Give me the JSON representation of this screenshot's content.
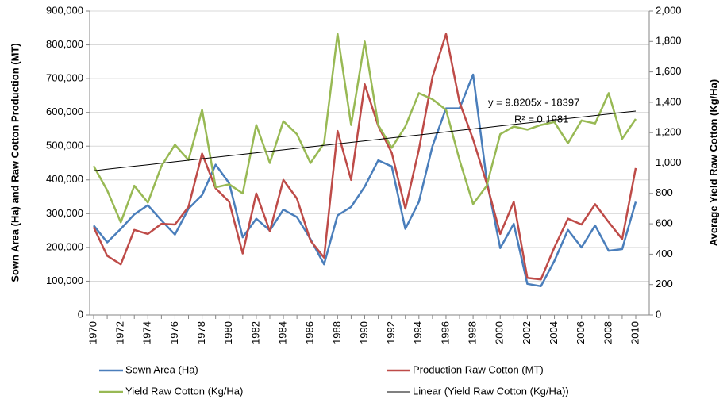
{
  "chart_data": {
    "type": "line",
    "y_label": "Sown Area (Ha) and Raw Cotton Production (MT)",
    "y2_label": "Average Yield Raw Cotton (Kg/Ha)",
    "annotations": [
      "y = 9.8205x - 18397",
      "R² = 0.1981"
    ],
    "categories": [
      "1970",
      null,
      "1972",
      null,
      "1974",
      null,
      "1976",
      null,
      "1978",
      null,
      "1980",
      null,
      "1982",
      null,
      "1984",
      null,
      "1986",
      null,
      "1988",
      null,
      "1990",
      null,
      "1992",
      null,
      "1994",
      null,
      "1996",
      null,
      "1998",
      null,
      "2000",
      null,
      "2002",
      null,
      "2004",
      null,
      "2006",
      null,
      "2008",
      null,
      "2010"
    ],
    "ylim": [
      0,
      900000
    ],
    "yticks": [
      0,
      {
        "value": 100000,
        "label": "100,000"
      },
      {
        "value": 200000,
        "label": "200,000"
      },
      {
        "value": 300000,
        "label": "300,000"
      },
      {
        "value": 400000,
        "label": "400,000"
      },
      {
        "value": 500000,
        "label": "500,000"
      },
      {
        "value": 600000,
        "label": "600,000"
      },
      {
        "value": 700000,
        "label": "700,000"
      },
      {
        "value": 800000,
        "label": "800,000"
      },
      {
        "value": 900000,
        "label": "900,000"
      }
    ],
    "y2lim": [
      0,
      2000
    ],
    "y2ticks": [
      0,
      200,
      400,
      600,
      800,
      {
        "value": 1000,
        "label": "1,000"
      },
      {
        "value": 1200,
        "label": "1,200"
      },
      {
        "value": 1400,
        "label": "1,400"
      },
      {
        "value": 1600,
        "label": "1,600"
      },
      {
        "value": 1800,
        "label": "1,800"
      },
      {
        "value": 2000,
        "label": "2,000"
      }
    ],
    "grid": true,
    "legend": "bottom",
    "series": [
      {
        "name": "Sown Area (Ha)",
        "color": "#4a7ebb",
        "values": [
          265000,
          215000,
          255000,
          298000,
          325000,
          280000,
          238000,
          315000,
          355000,
          445000,
          390000,
          230000,
          285000,
          250000,
          312000,
          290000,
          225000,
          150000,
          295000,
          320000,
          380000,
          458000,
          440000,
          255000,
          335000,
          500000,
          612000,
          612000,
          712000,
          400000,
          198000,
          270000,
          92000,
          85000,
          160000,
          252000,
          200000,
          265000,
          190000,
          195000,
          335000
        ]
      },
      {
        "name": "Production Raw Cotton (MT)",
        "color": "#be4b48",
        "values": [
          260000,
          175000,
          150000,
          252000,
          240000,
          270000,
          268000,
          320000,
          478000,
          375000,
          335000,
          182000,
          360000,
          248000,
          400000,
          345000,
          220000,
          170000,
          545000,
          400000,
          683000,
          560000,
          480000,
          315000,
          490000,
          705000,
          832000,
          630000,
          520000,
          390000,
          240000,
          335000,
          110000,
          105000,
          200000,
          285000,
          268000,
          328000,
          275000,
          225000,
          435000
        ]
      },
      {
        "name": "Yield Raw Cotton (Kg/Ha)",
        "color": "#98b954",
        "axis": "y2",
        "values": [
          980,
          820,
          610,
          850,
          740,
          980,
          1120,
          1020,
          1350,
          840,
          860,
          800,
          1250,
          1000,
          1275,
          1190,
          1000,
          1130,
          1850,
          1250,
          1800,
          1250,
          1100,
          1240,
          1460,
          1420,
          1350,
          1020,
          730,
          850,
          1190,
          1240,
          1220,
          1250,
          1270,
          1130,
          1280,
          1260,
          1460,
          1160,
          1290
        ]
      },
      {
        "name": "Linear (Yield Raw Cotton (Kg/Ha))",
        "color": "#000000",
        "axis": "y2",
        "values": [
          949.4,
          959.2,
          969.0,
          978.9,
          988.7,
          998.5,
          1008.3,
          1018.1,
          1028.0,
          1037.8,
          1047.6,
          1057.4,
          1067.2,
          1077.1,
          1086.9,
          1096.7,
          1106.5,
          1116.3,
          1126.1,
          1136.0,
          1145.8,
          1155.6,
          1165.4,
          1175.2,
          1185.1,
          1194.9,
          1204.7,
          1214.5,
          1224.3,
          1234.2,
          1244.0,
          1253.8,
          1263.6,
          1273.4,
          1283.3,
          1293.1,
          1302.9,
          1312.7,
          1322.5,
          1332.4,
          1342.2
        ]
      }
    ]
  }
}
